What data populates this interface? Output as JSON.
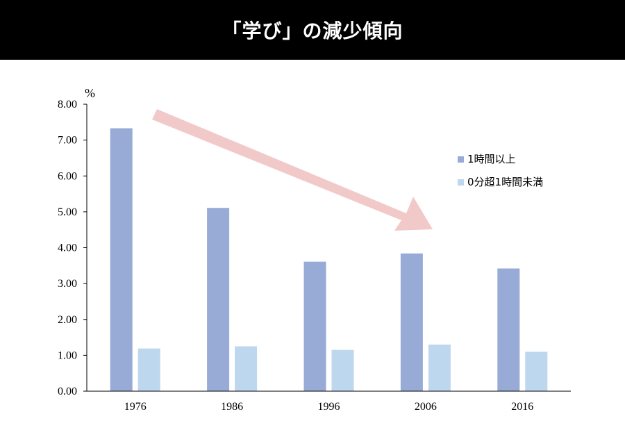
{
  "header": {
    "title": "「学び」の減少傾向"
  },
  "chart_data": {
    "type": "bar",
    "categories": [
      "1976",
      "1986",
      "1996",
      "2006",
      "2016"
    ],
    "series": [
      {
        "name": "1時間以上",
        "values": [
          7.33,
          5.11,
          3.61,
          3.84,
          3.42
        ],
        "color": "#97abd6"
      },
      {
        "name": "0分超1時間未満",
        "values": [
          1.19,
          1.25,
          1.15,
          1.3,
          1.1
        ],
        "color": "#bdd7ee"
      }
    ],
    "ylim": [
      0,
      8
    ],
    "yticks": [
      "0.00",
      "1.00",
      "2.00",
      "3.00",
      "4.00",
      "5.00",
      "6.00",
      "7.00",
      "8.00"
    ],
    "yunit": "%",
    "legend_position": "right",
    "grid": false,
    "annotation": {
      "type": "arrow",
      "direction": "down-right",
      "color": "#f2c9c9"
    }
  }
}
